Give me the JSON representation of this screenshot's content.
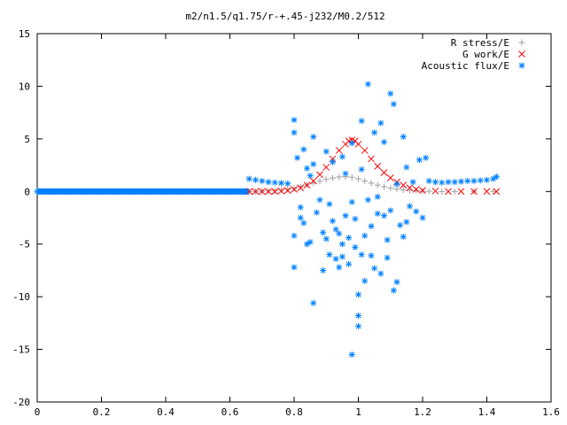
{
  "chart_data": {
    "type": "scatter",
    "title": "m2/n1.5/q1.75/r-+.45-j232/M0.2/512",
    "xlabel": "",
    "ylabel": "",
    "xlim": [
      0,
      1.6
    ],
    "ylim": [
      -20,
      15
    ],
    "xticks": [
      0,
      0.2,
      0.4,
      0.6,
      0.8,
      1,
      1.2,
      1.4,
      1.6
    ],
    "xtick_labels": [
      "0",
      "0.2",
      "0.4",
      "0.6",
      "0.8",
      "1",
      "1.2",
      "1.4",
      "1.6"
    ],
    "yticks": [
      15,
      10,
      5,
      0,
      -5,
      -10,
      -15,
      -20
    ],
    "ytick_labels": [
      "15",
      "10",
      "5",
      "0",
      "-5",
      "-10",
      "-15",
      "-20"
    ],
    "grid": false,
    "legend_position": "top-right",
    "series": [
      {
        "name": "R stress/E",
        "color": "#a0a0a0",
        "marker": "plus",
        "points": [
          [
            0.66,
            0.0
          ],
          [
            0.68,
            0.0
          ],
          [
            0.7,
            0.02
          ],
          [
            0.72,
            0.05
          ],
          [
            0.74,
            0.08
          ],
          [
            0.76,
            0.12
          ],
          [
            0.78,
            0.2
          ],
          [
            0.8,
            0.3
          ],
          [
            0.82,
            0.45
          ],
          [
            0.84,
            0.62
          ],
          [
            0.86,
            0.8
          ],
          [
            0.88,
            0.98
          ],
          [
            0.9,
            1.15
          ],
          [
            0.92,
            1.28
          ],
          [
            0.94,
            1.38
          ],
          [
            0.96,
            1.4
          ],
          [
            0.98,
            1.35
          ],
          [
            1.0,
            1.2
          ],
          [
            1.02,
            1.0
          ],
          [
            1.04,
            0.8
          ],
          [
            1.06,
            0.6
          ],
          [
            1.08,
            0.45
          ],
          [
            1.1,
            0.33
          ],
          [
            1.12,
            0.22
          ],
          [
            1.14,
            0.15
          ],
          [
            1.16,
            0.1
          ],
          [
            1.18,
            0.06
          ],
          [
            1.2,
            0.03
          ],
          [
            1.22,
            0.02
          ],
          [
            1.26,
            0.0
          ],
          [
            1.3,
            0.0
          ],
          [
            1.36,
            0.0
          ],
          [
            1.42,
            0.0
          ]
        ]
      },
      {
        "name": "G work/E",
        "color": "#ff0000",
        "marker": "cross",
        "points": [
          [
            0.66,
            0.0
          ],
          [
            0.68,
            0.0
          ],
          [
            0.7,
            0.0
          ],
          [
            0.72,
            0.0
          ],
          [
            0.74,
            0.0
          ],
          [
            0.76,
            0.05
          ],
          [
            0.78,
            0.1
          ],
          [
            0.8,
            0.2
          ],
          [
            0.82,
            0.35
          ],
          [
            0.84,
            0.6
          ],
          [
            0.86,
            1.0
          ],
          [
            0.88,
            1.6
          ],
          [
            0.9,
            2.3
          ],
          [
            0.92,
            3.1
          ],
          [
            0.94,
            3.9
          ],
          [
            0.96,
            4.5
          ],
          [
            0.97,
            4.8
          ],
          [
            0.98,
            4.9
          ],
          [
            0.99,
            4.8
          ],
          [
            1.0,
            4.5
          ],
          [
            1.02,
            3.9
          ],
          [
            1.04,
            3.1
          ],
          [
            1.06,
            2.4
          ],
          [
            1.08,
            1.8
          ],
          [
            1.1,
            1.3
          ],
          [
            1.12,
            0.9
          ],
          [
            1.14,
            0.6
          ],
          [
            1.16,
            0.35
          ],
          [
            1.18,
            0.2
          ],
          [
            1.2,
            0.1
          ],
          [
            1.24,
            0.05
          ],
          [
            1.28,
            0.0
          ],
          [
            1.32,
            0.0
          ],
          [
            1.36,
            0.0
          ],
          [
            1.4,
            0.0
          ],
          [
            1.43,
            0.0
          ]
        ]
      },
      {
        "name": "Acoustic flux/E",
        "color": "#0080ff",
        "marker": "star",
        "points": [
          [
            0.0,
            0.0
          ],
          [
            0.05,
            0.0
          ],
          [
            0.1,
            0.0
          ],
          [
            0.15,
            0.0
          ],
          [
            0.2,
            0.0
          ],
          [
            0.25,
            0.0
          ],
          [
            0.3,
            0.0
          ],
          [
            0.35,
            0.0
          ],
          [
            0.4,
            0.0
          ],
          [
            0.45,
            0.0
          ],
          [
            0.5,
            0.0
          ],
          [
            0.55,
            0.0
          ],
          [
            0.6,
            0.0
          ],
          [
            0.65,
            0.0
          ],
          [
            0.66,
            1.2
          ],
          [
            0.68,
            1.1
          ],
          [
            0.7,
            1.0
          ],
          [
            0.72,
            0.9
          ],
          [
            0.74,
            0.85
          ],
          [
            0.76,
            0.8
          ],
          [
            0.78,
            0.75
          ],
          [
            0.8,
            6.8
          ],
          [
            0.8,
            5.6
          ],
          [
            0.8,
            -4.2
          ],
          [
            0.8,
            -7.2
          ],
          [
            0.81,
            3.2
          ],
          [
            0.82,
            -1.5
          ],
          [
            0.82,
            -2.5
          ],
          [
            0.83,
            4.0
          ],
          [
            0.83,
            -3.0
          ],
          [
            0.84,
            2.2
          ],
          [
            0.84,
            -5.0
          ],
          [
            0.85,
            1.5
          ],
          [
            0.85,
            -4.8
          ],
          [
            0.86,
            5.2
          ],
          [
            0.86,
            2.6
          ],
          [
            0.86,
            -10.6
          ],
          [
            0.87,
            -2.0
          ],
          [
            0.88,
            -0.8
          ],
          [
            0.89,
            -3.9
          ],
          [
            0.89,
            -7.5
          ],
          [
            0.9,
            3.8
          ],
          [
            0.9,
            -4.5
          ],
          [
            0.91,
            -1.2
          ],
          [
            0.91,
            -6.0
          ],
          [
            0.92,
            2.8
          ],
          [
            0.92,
            -2.8
          ],
          [
            0.93,
            -3.6
          ],
          [
            0.93,
            -6.4
          ],
          [
            0.94,
            -4.0
          ],
          [
            0.94,
            -7.2
          ],
          [
            0.95,
            3.3
          ],
          [
            0.95,
            -5.0
          ],
          [
            0.95,
            -6.2
          ],
          [
            0.96,
            1.7
          ],
          [
            0.96,
            -2.3
          ],
          [
            0.97,
            -4.4
          ],
          [
            0.97,
            -6.9
          ],
          [
            0.98,
            4.6
          ],
          [
            0.98,
            -1.0
          ],
          [
            0.98,
            -15.5
          ],
          [
            0.99,
            -2.6
          ],
          [
            0.99,
            -5.3
          ],
          [
            1.0,
            -11.8
          ],
          [
            1.0,
            -12.8
          ],
          [
            1.0,
            -9.8
          ],
          [
            1.01,
            6.7
          ],
          [
            1.01,
            2.1
          ],
          [
            1.01,
            -6.0
          ],
          [
            1.02,
            -4.2
          ],
          [
            1.02,
            -8.5
          ],
          [
            1.03,
            10.2
          ],
          [
            1.03,
            -0.8
          ],
          [
            1.04,
            -3.3
          ],
          [
            1.04,
            -6.1
          ],
          [
            1.05,
            5.6
          ],
          [
            1.05,
            -7.3
          ],
          [
            1.06,
            -0.5
          ],
          [
            1.06,
            -2.1
          ],
          [
            1.07,
            6.5
          ],
          [
            1.07,
            -7.8
          ],
          [
            1.08,
            4.7
          ],
          [
            1.08,
            -2.3
          ],
          [
            1.09,
            -4.6
          ],
          [
            1.09,
            -6.3
          ],
          [
            1.1,
            9.3
          ],
          [
            1.1,
            -1.8
          ],
          [
            1.11,
            8.3
          ],
          [
            1.11,
            -9.4
          ],
          [
            1.12,
            0.7
          ],
          [
            1.12,
            -8.6
          ],
          [
            1.13,
            -3.2
          ],
          [
            1.14,
            5.2
          ],
          [
            1.14,
            -4.3
          ],
          [
            1.15,
            2.3
          ],
          [
            1.15,
            -2.9
          ],
          [
            1.16,
            -1.4
          ],
          [
            1.17,
            0.9
          ],
          [
            1.18,
            -1.9
          ],
          [
            1.19,
            3.0
          ],
          [
            1.2,
            -2.5
          ],
          [
            1.21,
            3.2
          ],
          [
            1.22,
            1.0
          ],
          [
            1.24,
            0.9
          ],
          [
            1.26,
            0.85
          ],
          [
            1.28,
            0.9
          ],
          [
            1.3,
            0.9
          ],
          [
            1.32,
            0.95
          ],
          [
            1.34,
            1.0
          ],
          [
            1.36,
            1.0
          ],
          [
            1.38,
            1.05
          ],
          [
            1.4,
            1.1
          ],
          [
            1.42,
            1.2
          ],
          [
            1.43,
            1.4
          ]
        ]
      }
    ]
  }
}
